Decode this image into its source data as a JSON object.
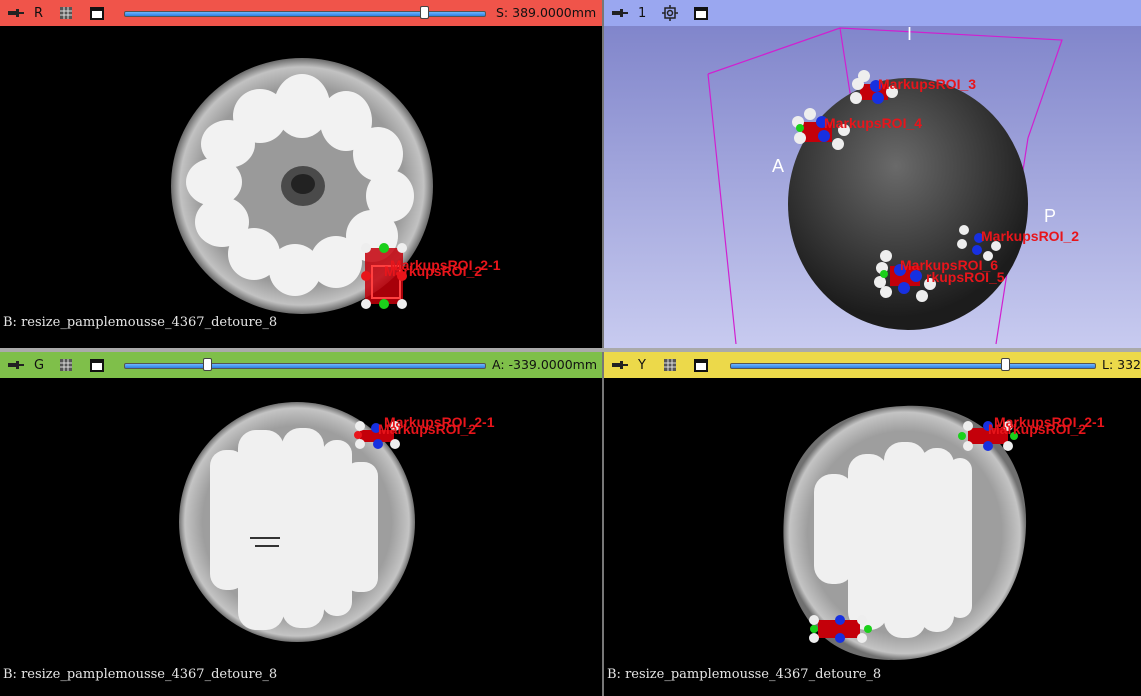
{
  "red_view": {
    "label": "R",
    "offset_readout": "S: 389.0000mm",
    "slider_fraction": 0.89,
    "footer": "B: resize_pamplemousse_4367_detoure_8",
    "roi_labels": [
      "MarkupsROI_2-1",
      "MarkupsROI_2"
    ]
  },
  "view3d": {
    "label": "1",
    "orientation": {
      "top": "I",
      "left": "A",
      "right": "P"
    },
    "roi_labels": [
      "MarkupsROI_3",
      "MarkupsROI_4",
      "MarkupsROI_2",
      "MarkupsROI_6",
      "rkupsROI_5"
    ]
  },
  "green_view": {
    "label": "G",
    "offset_readout": "A: -339.0000mm",
    "slider_fraction": 0.22,
    "footer": "B: resize_pamplemousse_4367_detoure_8",
    "roi_labels": [
      "MarkupsROI_2-1",
      "MarkupsROI_2"
    ]
  },
  "yellow_view": {
    "label": "Y",
    "offset_readout": "L: 332",
    "slider_fraction": 0.74,
    "footer": "B: resize_pamplemousse_4367_detoure_8",
    "roi_labels": [
      "MarkupsROI_2-1",
      "MarkupsROI_2"
    ]
  },
  "colors": {
    "red_bar": "#f0544a",
    "green_bar": "#7fbf4a",
    "yellow_bar": "#ecd94a",
    "view3d_bar": "#9aa7f0",
    "roi_red": "#e8151b",
    "roi_box": "#c4000a",
    "handle_green": "#1bd01b",
    "handle_blue": "#1730e0",
    "bbox_magenta": "#d020d0"
  }
}
